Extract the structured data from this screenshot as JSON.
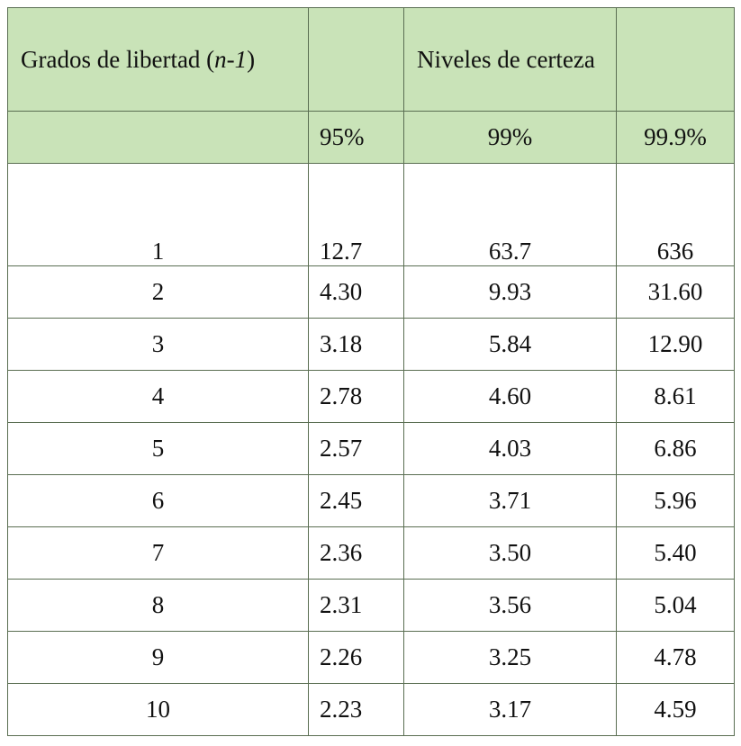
{
  "header": {
    "col0_text": "Grados de libertad (",
    "col0_italic": "n-1",
    "col0_close": ")",
    "levels_label": "Niveles de certeza",
    "levels": [
      "95%",
      "99%",
      "99.9%"
    ]
  },
  "rows": [
    {
      "df": "1",
      "v95": "12.7",
      "v99": "63.7",
      "v999": "636"
    },
    {
      "df": "2",
      "v95": "4.30",
      "v99": "9.93",
      "v999": "31.60"
    },
    {
      "df": "3",
      "v95": "3.18",
      "v99": "5.84",
      "v999": "12.90"
    },
    {
      "df": "4",
      "v95": "2.78",
      "v99": "4.60",
      "v999": "8.61"
    },
    {
      "df": "5",
      "v95": "2.57",
      "v99": "4.03",
      "v999": "6.86"
    },
    {
      "df": "6",
      "v95": "2.45",
      "v99": "3.71",
      "v999": "5.96"
    },
    {
      "df": "7",
      "v95": "2.36",
      "v99": "3.50",
      "v999": "5.40"
    },
    {
      "df": "8",
      "v95": "2.31",
      "v99": "3.56",
      "v999": "5.04"
    },
    {
      "df": "9",
      "v95": "2.26",
      "v99": "3.25",
      "v999": "4.78"
    },
    {
      "df": "10",
      "v95": "2.23",
      "v99": "3.17",
      "v999": "4.59"
    }
  ],
  "colors": {
    "header_bg": "#c9e3b8",
    "border": "#5a6e52"
  }
}
